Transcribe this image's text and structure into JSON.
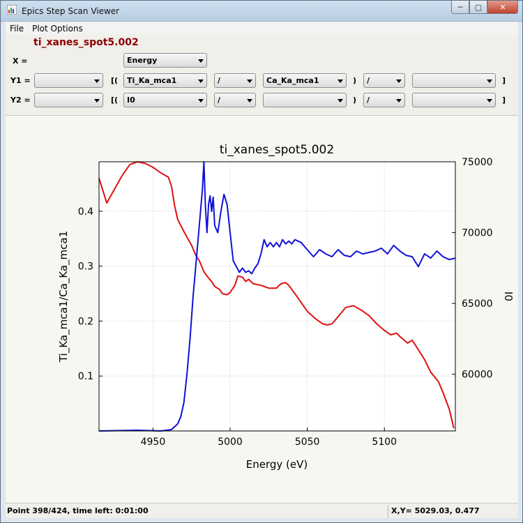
{
  "window": {
    "title": "Epics Step Scan Viewer",
    "minimize": "─",
    "maximize": "▢",
    "close": "✕"
  },
  "menu": [
    "File",
    "Plot Options"
  ],
  "scan_name": "ti_xanes_spot5.002",
  "selectors": {
    "x_label": "X =",
    "x_value": "Energy",
    "y1_label": "Y1 =",
    "y2_label": "Y2 =",
    "open_paren": "[(",
    "close_paren": ")",
    "close_bracket": "]",
    "y1": [
      "",
      "Ti_Ka_mca1",
      "/",
      "Ca_Ka_mca1",
      "/",
      ""
    ],
    "y2": [
      "",
      "I0",
      "/",
      "",
      "/",
      ""
    ]
  },
  "chart_data": {
    "type": "line",
    "title": "ti_xanes_spot5.002",
    "xlabel": "Energy (eV)",
    "ylabel_left": "Ti_Ka_mca1/Ca_Ka_mca1",
    "ylabel_right": "I0",
    "xlim": [
      4915,
      5146
    ],
    "ylim_left": [
      0.0,
      0.49
    ],
    "ylim_right": [
      56000,
      75000
    ],
    "x_ticks": [
      4950,
      5000,
      5050,
      5100
    ],
    "y_left_ticks": [
      "0.1",
      "0.2",
      "0.3",
      "0.4"
    ],
    "y_right_ticks": [
      "60000",
      "65000",
      "70000",
      "75000"
    ],
    "grid": true,
    "series": [
      {
        "color": "#e01010",
        "axis": "left",
        "points": [
          [
            4915,
            0.46
          ],
          [
            4920,
            0.415
          ],
          [
            4925,
            0.44
          ],
          [
            4930,
            0.465
          ],
          [
            4935,
            0.485
          ],
          [
            4940,
            0.49
          ],
          [
            4945,
            0.487
          ],
          [
            4950,
            0.48
          ],
          [
            4955,
            0.47
          ],
          [
            4960,
            0.462
          ],
          [
            4962,
            0.445
          ],
          [
            4964,
            0.41
          ],
          [
            4966,
            0.385
          ],
          [
            4970,
            0.363
          ],
          [
            4975,
            0.338
          ],
          [
            4978,
            0.318
          ],
          [
            4980,
            0.31
          ],
          [
            4983,
            0.29
          ],
          [
            4985,
            0.282
          ],
          [
            4988,
            0.272
          ],
          [
            4990,
            0.263
          ],
          [
            4993,
            0.258
          ],
          [
            4995,
            0.25
          ],
          [
            4998,
            0.248
          ],
          [
            5000,
            0.252
          ],
          [
            5003,
            0.265
          ],
          [
            5005,
            0.282
          ],
          [
            5008,
            0.28
          ],
          [
            5010,
            0.272
          ],
          [
            5012,
            0.276
          ],
          [
            5015,
            0.268
          ],
          [
            5020,
            0.265
          ],
          [
            5025,
            0.26
          ],
          [
            5030,
            0.26
          ],
          [
            5033,
            0.268
          ],
          [
            5036,
            0.27
          ],
          [
            5038,
            0.265
          ],
          [
            5042,
            0.25
          ],
          [
            5047,
            0.23
          ],
          [
            5050,
            0.218
          ],
          [
            5055,
            0.205
          ],
          [
            5060,
            0.195
          ],
          [
            5063,
            0.193
          ],
          [
            5066,
            0.195
          ],
          [
            5070,
            0.208
          ],
          [
            5075,
            0.225
          ],
          [
            5080,
            0.228
          ],
          [
            5085,
            0.22
          ],
          [
            5090,
            0.21
          ],
          [
            5095,
            0.195
          ],
          [
            5100,
            0.183
          ],
          [
            5104,
            0.175
          ],
          [
            5108,
            0.178
          ],
          [
            5110,
            0.172
          ],
          [
            5115,
            0.16
          ],
          [
            5118,
            0.165
          ],
          [
            5122,
            0.148
          ],
          [
            5126,
            0.13
          ],
          [
            5130,
            0.107
          ],
          [
            5135,
            0.09
          ],
          [
            5138,
            0.07
          ],
          [
            5142,
            0.04
          ],
          [
            5145,
            0.005
          ]
        ]
      },
      {
        "color": "#1010d8",
        "axis": "right",
        "points": [
          [
            4915,
            56000
          ],
          [
            4940,
            56050
          ],
          [
            4955,
            56000
          ],
          [
            4962,
            56100
          ],
          [
            4966,
            56500
          ],
          [
            4968,
            57000
          ],
          [
            4970,
            58000
          ],
          [
            4972,
            60000
          ],
          [
            4974,
            62500
          ],
          [
            4976,
            65500
          ],
          [
            4978,
            68000
          ],
          [
            4980,
            70500
          ],
          [
            4982,
            73000
          ],
          [
            4983,
            75000
          ],
          [
            4984,
            71800
          ],
          [
            4985,
            70000
          ],
          [
            4986,
            72000
          ],
          [
            4987,
            72600
          ],
          [
            4988,
            71500
          ],
          [
            4989,
            72500
          ],
          [
            4990,
            70500
          ],
          [
            4992,
            70000
          ],
          [
            4994,
            71500
          ],
          [
            4996,
            72700
          ],
          [
            4998,
            72000
          ],
          [
            5000,
            70000
          ],
          [
            5002,
            68000
          ],
          [
            5004,
            67600
          ],
          [
            5006,
            67200
          ],
          [
            5008,
            67500
          ],
          [
            5010,
            67200
          ],
          [
            5012,
            67300
          ],
          [
            5014,
            67100
          ],
          [
            5016,
            67500
          ],
          [
            5018,
            67800
          ],
          [
            5020,
            68500
          ],
          [
            5022,
            69500
          ],
          [
            5024,
            69000
          ],
          [
            5026,
            69300
          ],
          [
            5028,
            69000
          ],
          [
            5030,
            69300
          ],
          [
            5032,
            69000
          ],
          [
            5034,
            69500
          ],
          [
            5036,
            69200
          ],
          [
            5038,
            69400
          ],
          [
            5040,
            69200
          ],
          [
            5042,
            69500
          ],
          [
            5046,
            69300
          ],
          [
            5050,
            68800
          ],
          [
            5054,
            68300
          ],
          [
            5058,
            68800
          ],
          [
            5062,
            68500
          ],
          [
            5066,
            68300
          ],
          [
            5070,
            68800
          ],
          [
            5074,
            68400
          ],
          [
            5078,
            68300
          ],
          [
            5082,
            68700
          ],
          [
            5086,
            68500
          ],
          [
            5090,
            68600
          ],
          [
            5094,
            68700
          ],
          [
            5098,
            68900
          ],
          [
            5102,
            68500
          ],
          [
            5106,
            69100
          ],
          [
            5110,
            68700
          ],
          [
            5114,
            68400
          ],
          [
            5118,
            68300
          ],
          [
            5122,
            67600
          ],
          [
            5126,
            68500
          ],
          [
            5130,
            68200
          ],
          [
            5134,
            68700
          ],
          [
            5138,
            68300
          ],
          [
            5142,
            68100
          ],
          [
            5146,
            68200
          ]
        ]
      }
    ]
  },
  "status": {
    "progress": "Point 398/424,  time left: 0:01:00",
    "cursor": "X,Y= 5029.03, 0.477"
  }
}
